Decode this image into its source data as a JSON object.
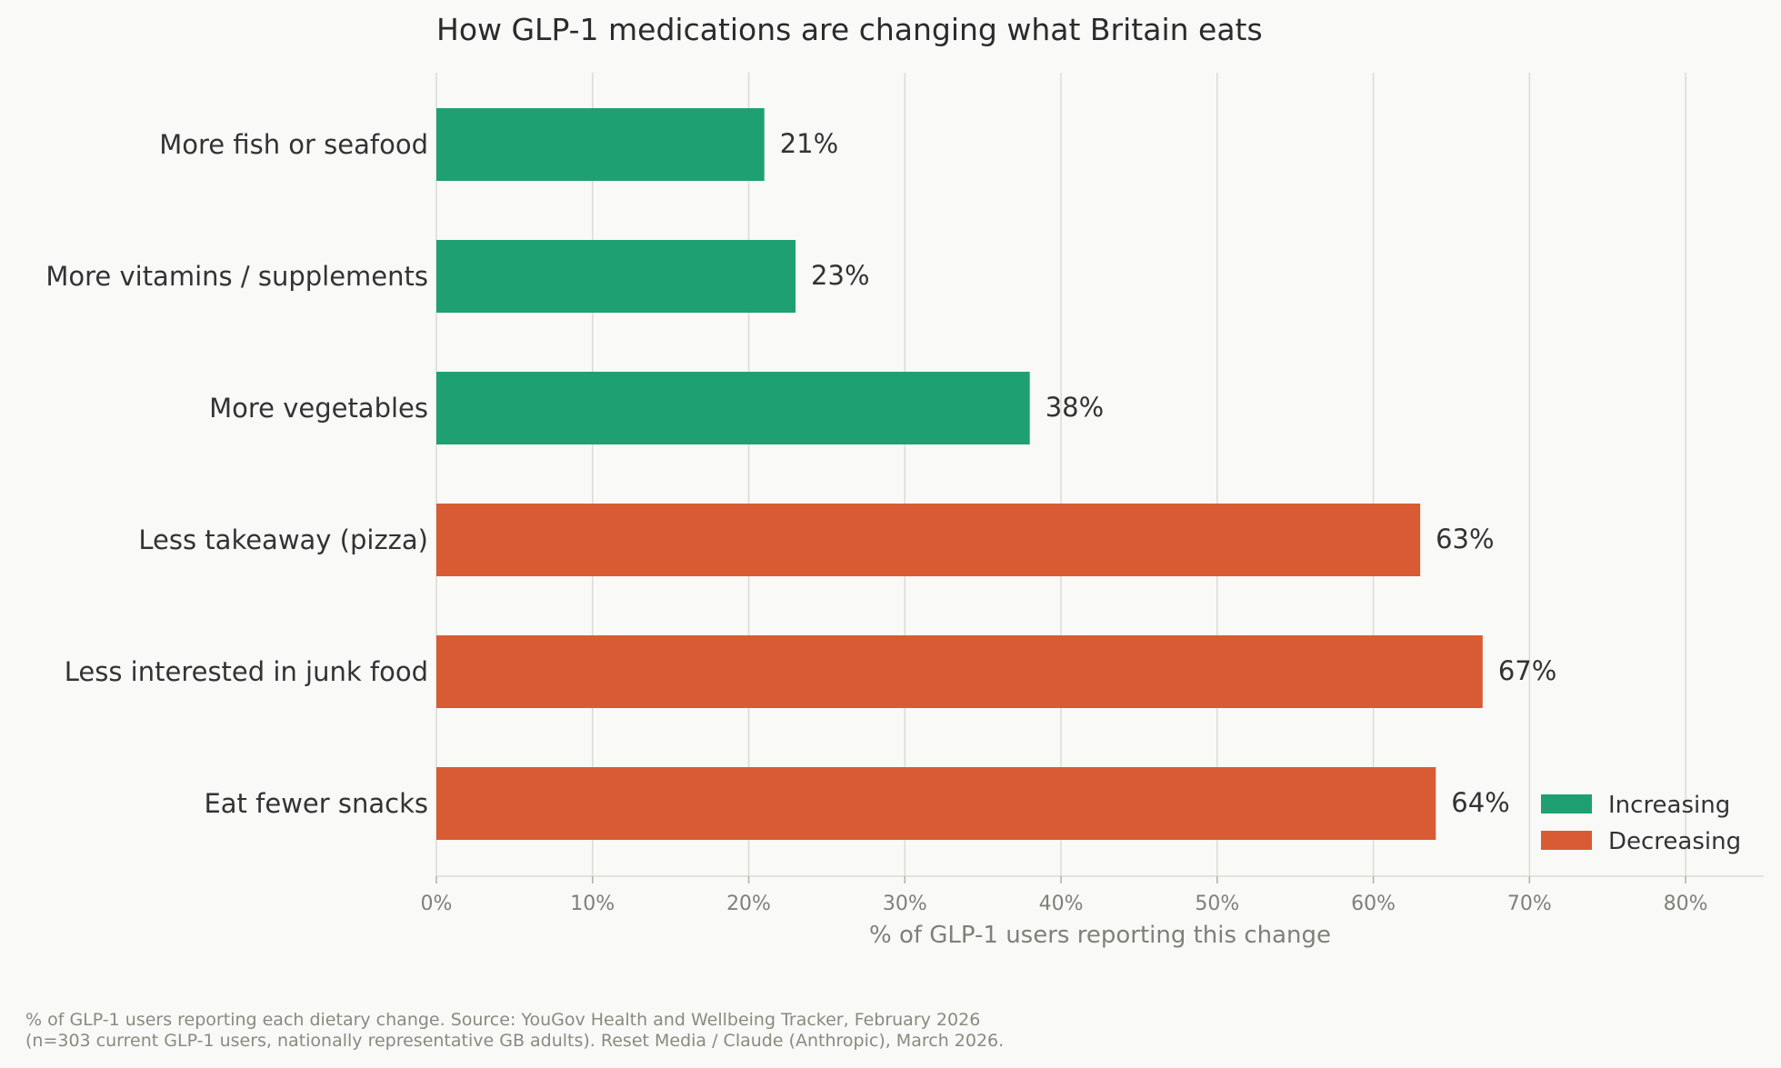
{
  "chart_data": {
    "type": "bar",
    "orientation": "horizontal",
    "title": "How GLP-1 medications are changing what Britain eats",
    "xlabel": "% of GLP-1 users reporting this change",
    "ylabel": "",
    "xlim": [
      0,
      85
    ],
    "x_ticks": [
      0,
      10,
      20,
      30,
      40,
      50,
      60,
      70,
      80
    ],
    "x_tick_labels": [
      "0%",
      "10%",
      "20%",
      "30%",
      "40%",
      "50%",
      "60%",
      "70%",
      "80%"
    ],
    "grid": "vertical",
    "legend_position": "bottom-right",
    "categories": [
      "More fish or seafood",
      "More vitamins / supplements",
      "More vegetables",
      "Less takeaway (pizza)",
      "Less interested in junk food",
      "Eat fewer snacks"
    ],
    "values": [
      21,
      23,
      38,
      63,
      67,
      64
    ],
    "value_labels": [
      "21%",
      "23%",
      "38%",
      "63%",
      "67%",
      "64%"
    ],
    "groups": [
      "Increasing",
      "Increasing",
      "Increasing",
      "Decreasing",
      "Decreasing",
      "Decreasing"
    ],
    "legend": [
      {
        "name": "Increasing",
        "color": "#1fa073"
      },
      {
        "name": "Decreasing",
        "color": "#d95b33"
      }
    ]
  },
  "footnote": {
    "line1": "% of GLP-1 users reporting each dietary change. Source: YouGov Health and Wellbeing Tracker, February 2026",
    "line2": "(n=303 current GLP-1 users, nationally representative GB adults). Reset Media / Claude (Anthropic), March 2026."
  },
  "colors": {
    "background": "#f9f9f7",
    "increasing": "#1fa073",
    "decreasing": "#d95b33",
    "grid": "#dcdcd2",
    "text": "#333333",
    "muted": "#80807a"
  }
}
